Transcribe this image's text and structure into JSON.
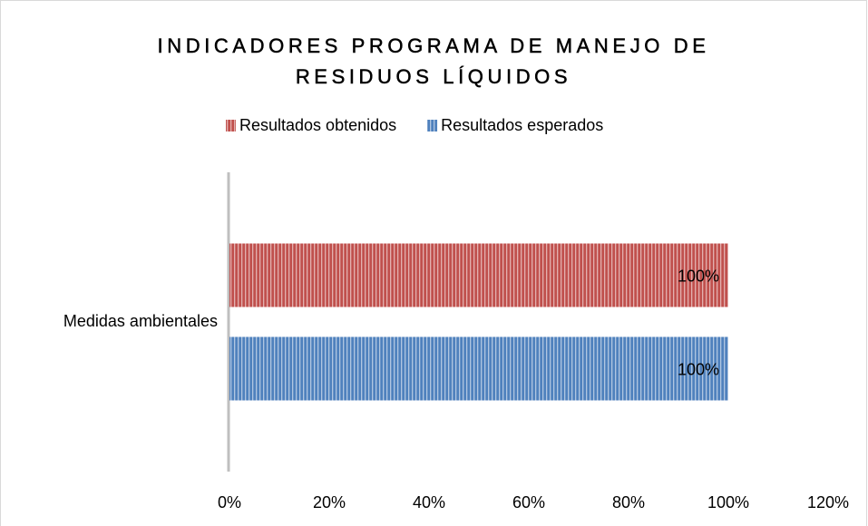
{
  "chart_data": {
    "type": "barh",
    "title": "INDICADORES PROGRAMA DE MANEJO DE RESIDUOS LÍQUIDOS",
    "categories": [
      "Medidas ambientales"
    ],
    "series": [
      {
        "name": "Resultados obtenidos",
        "color": "#c0504d",
        "values": [
          100
        ],
        "value_labels": [
          "100%"
        ]
      },
      {
        "name": "Resultados esperados",
        "color": "#4f81bd",
        "values": [
          100
        ],
        "value_labels": [
          "100%"
        ]
      }
    ],
    "xlim": [
      0,
      120
    ],
    "xticks": [
      {
        "value": 0,
        "label": "0%"
      },
      {
        "value": 20,
        "label": "20%"
      },
      {
        "value": 40,
        "label": "40%"
      },
      {
        "value": 60,
        "label": "60%"
      },
      {
        "value": 80,
        "label": "80%"
      },
      {
        "value": 100,
        "label": "100%"
      },
      {
        "value": 120,
        "label": "120%"
      }
    ],
    "legend": "top",
    "grid": false
  }
}
